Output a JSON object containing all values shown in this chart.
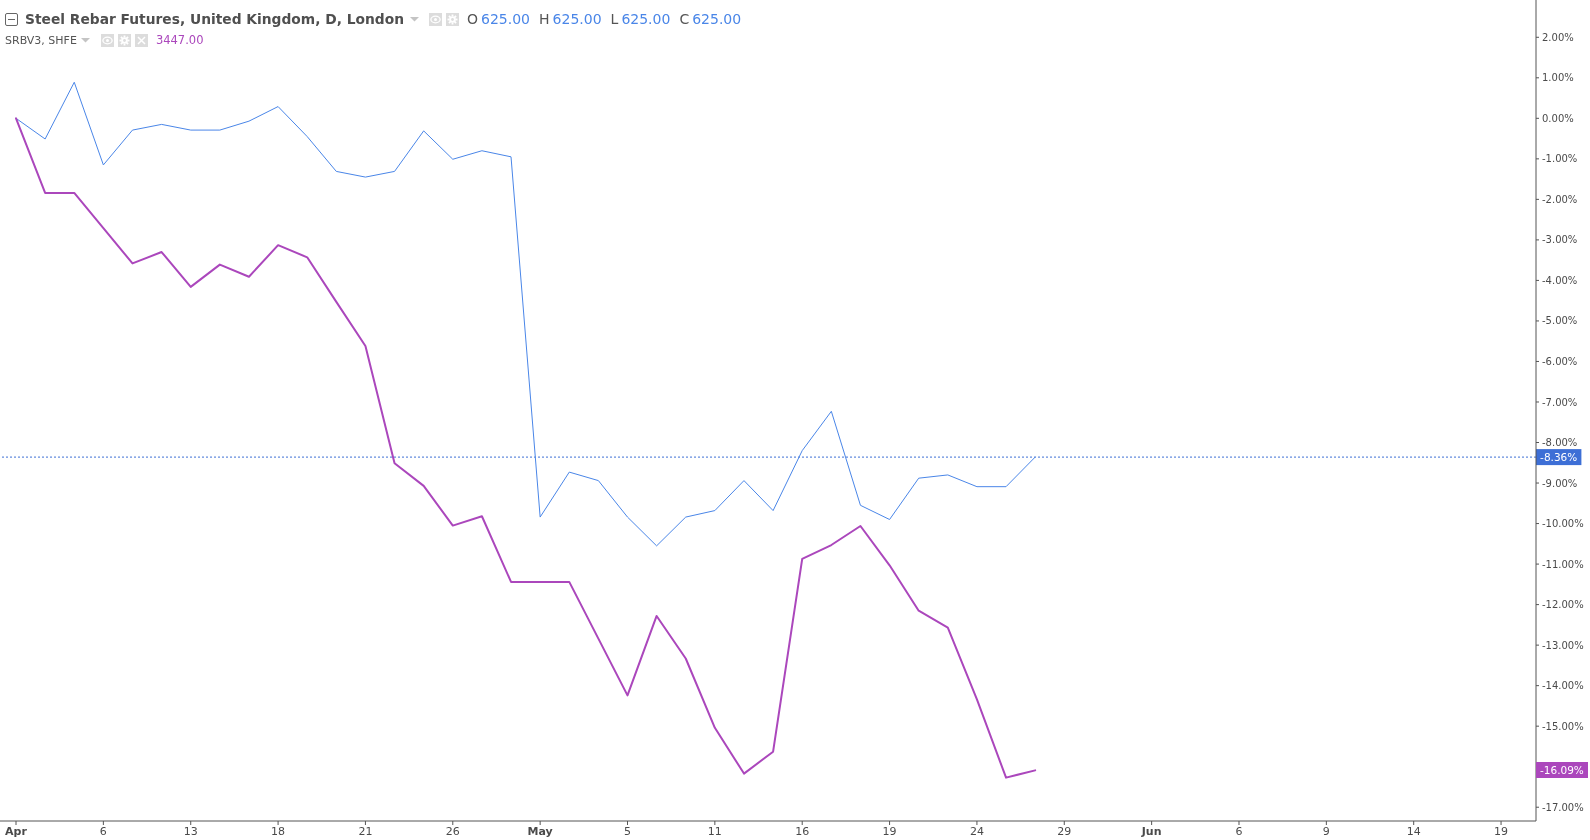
{
  "chart_data": {
    "type": "line",
    "title": "Steel Rebar Futures, United Kingdom, D, London",
    "subtitle": "SRBV3, SHFE",
    "categories": [
      "Apr",
      null,
      null,
      "6",
      null,
      null,
      "13",
      null,
      null,
      "18",
      null,
      null,
      "21",
      null,
      null,
      "26",
      null,
      null,
      "May",
      null,
      null,
      "5",
      null,
      null,
      "11",
      null,
      null,
      "16",
      null,
      null,
      "19",
      null,
      null,
      "24",
      null,
      null,
      "29",
      null,
      null,
      "Jun",
      null,
      null,
      "6",
      null,
      null,
      "9",
      null,
      null,
      "14",
      null,
      null,
      "19"
    ],
    "series": [
      {
        "color": "#4a86e8",
        "values": [
          0,
          -0.51,
          0.89,
          -1.15,
          -0.29,
          -0.15,
          -0.29,
          -0.29,
          -0.07,
          0.29,
          -0.45,
          -1.31,
          -1.45,
          -1.31,
          -0.31,
          -1.01,
          -0.8,
          -0.95,
          -9.84,
          -8.73,
          -8.94,
          -9.84,
          -10.55,
          -9.84,
          -9.68,
          -8.94,
          -9.68,
          -8.2,
          -7.23,
          -9.55,
          -9.9,
          -8.88,
          -8.8,
          -9.09,
          -9.09,
          -8.36,
          null,
          null,
          null,
          null,
          null,
          null,
          null,
          null,
          null,
          null,
          null,
          null,
          null,
          null,
          null,
          null
        ]
      },
      {
        "color": "#ab47bc",
        "values": [
          0,
          -1.84,
          -1.84,
          -2.71,
          -3.58,
          -3.3,
          -4.16,
          -3.61,
          -3.91,
          -3.13,
          -3.43,
          -4.53,
          -5.62,
          -8.51,
          -9.07,
          -10.05,
          -9.82,
          -11.44,
          -11.44,
          -11.44,
          -12.84,
          -14.24,
          -12.28,
          -13.33,
          -15.04,
          -16.17,
          -15.63,
          -10.87,
          -10.53,
          -10.06,
          -11.03,
          -12.15,
          -12.57,
          -14.34,
          -16.27,
          -16.09,
          null,
          null,
          null,
          null,
          null,
          null,
          null,
          null,
          null,
          null,
          null,
          null,
          null,
          null,
          null,
          null
        ]
      }
    ],
    "ylim": [
      -17.34,
      2.92
    ],
    "yticks": [
      {
        "value": 2,
        "label": "2.00%"
      },
      {
        "value": 1,
        "label": "1.00%"
      },
      {
        "value": 0,
        "label": "0.00%"
      },
      {
        "value": -1,
        "label": "-1.00%"
      },
      {
        "value": -2,
        "label": "-2.00%"
      },
      {
        "value": -3,
        "label": "-3.00%"
      },
      {
        "value": -4,
        "label": "-4.00%"
      },
      {
        "value": -5,
        "label": "-5.00%"
      },
      {
        "value": -6,
        "label": "-6.00%"
      },
      {
        "value": -7,
        "label": "-7.00%"
      },
      {
        "value": -8,
        "label": "-8.00%"
      },
      {
        "value": -9,
        "label": "-9.00%"
      },
      {
        "value": -10,
        "label": "-10.00%"
      },
      {
        "value": -11,
        "label": "-11.00%"
      },
      {
        "value": -12,
        "label": "-12.00%"
      },
      {
        "value": -13,
        "label": "-13.00%"
      },
      {
        "value": -14,
        "label": "-14.00%"
      },
      {
        "value": -15,
        "label": "-15.00%"
      },
      {
        "value": -17,
        "label": "-17.00%"
      }
    ],
    "ref_lines": [
      {
        "axis": "y",
        "value": -8.36,
        "label": "-8.36%",
        "color": "#3d6fd6",
        "line_style": "dotted"
      }
    ],
    "annotations": [
      "O625.00",
      "H625.00",
      "L625.00",
      "C625.00",
      "3447.00",
      "-16.09%"
    ]
  }
}
